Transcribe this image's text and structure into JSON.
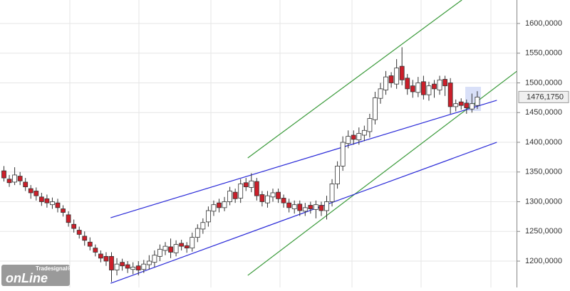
{
  "chart_data": {
    "type": "candlestick",
    "ylim": [
      1155.7,
      1639.5
    ],
    "yticks": [
      {
        "value": 1200,
        "label": "1200,0000"
      },
      {
        "value": 1250,
        "label": "1250,0000"
      },
      {
        "value": 1300,
        "label": "1300,0000"
      },
      {
        "value": 1350,
        "label": "1350,0000"
      },
      {
        "value": 1400,
        "label": "1400,0000"
      },
      {
        "value": 1450,
        "label": "1450,0000"
      },
      {
        "value": 1500,
        "label": "1500,0000"
      },
      {
        "value": 1550,
        "label": "1550,0000"
      },
      {
        "value": 1600,
        "label": "1600,0000"
      }
    ],
    "grid": true,
    "up_color": "#ffffff",
    "down_color": "#cc1f2a",
    "open": [
      1352,
      1338,
      1333,
      1343,
      1333,
      1322,
      1318,
      1308,
      1305,
      1295,
      1298,
      1288,
      1278,
      1262,
      1252,
      1242,
      1232,
      1222,
      1212,
      1208,
      1208,
      1185,
      1198,
      1194,
      1186,
      1192,
      1186,
      1194,
      1198,
      1208,
      1218,
      1224,
      1214,
      1230,
      1226,
      1222,
      1240,
      1254,
      1266,
      1284,
      1298,
      1290,
      1300,
      1316,
      1306,
      1332,
      1324,
      1334,
      1312,
      1298,
      1308,
      1316,
      1306,
      1298,
      1288,
      1296,
      1284,
      1294,
      1287,
      1294,
      1285,
      1300,
      1330,
      1360,
      1398,
      1412,
      1404,
      1412,
      1418,
      1438,
      1474,
      1488,
      1512,
      1498,
      1528,
      1508,
      1495,
      1484,
      1502,
      1480,
      1498,
      1488,
      1506,
      1500,
      1460,
      1468,
      1466,
      1456,
      1462
    ],
    "high": [
      1360,
      1345,
      1358,
      1350,
      1340,
      1328,
      1324,
      1315,
      1312,
      1307,
      1305,
      1294,
      1284,
      1270,
      1258,
      1250,
      1240,
      1228,
      1218,
      1215,
      1215,
      1205,
      1204,
      1200,
      1198,
      1200,
      1202,
      1210,
      1218,
      1228,
      1232,
      1238,
      1235,
      1236,
      1232,
      1248,
      1262,
      1272,
      1292,
      1302,
      1305,
      1308,
      1325,
      1322,
      1338,
      1340,
      1348,
      1340,
      1318,
      1318,
      1322,
      1322,
      1312,
      1305,
      1302,
      1302,
      1298,
      1300,
      1302,
      1300,
      1310,
      1338,
      1368,
      1410,
      1420,
      1420,
      1425,
      1428,
      1448,
      1485,
      1500,
      1520,
      1518,
      1540,
      1560,
      1515,
      1505,
      1510,
      1512,
      1502,
      1505,
      1512,
      1512,
      1508,
      1472,
      1474,
      1472,
      1482,
      1486
    ],
    "low": [
      1334,
      1325,
      1328,
      1328,
      1318,
      1305,
      1302,
      1293,
      1290,
      1288,
      1282,
      1275,
      1258,
      1248,
      1238,
      1226,
      1218,
      1208,
      1198,
      1192,
      1165,
      1176,
      1184,
      1180,
      1178,
      1176,
      1180,
      1186,
      1190,
      1200,
      1210,
      1205,
      1208,
      1218,
      1214,
      1216,
      1232,
      1246,
      1258,
      1276,
      1282,
      1284,
      1294,
      1298,
      1298,
      1318,
      1316,
      1302,
      1292,
      1290,
      1300,
      1298,
      1290,
      1282,
      1280,
      1276,
      1276,
      1280,
      1272,
      1276,
      1270,
      1292,
      1322,
      1352,
      1390,
      1396,
      1396,
      1402,
      1408,
      1430,
      1465,
      1480,
      1492,
      1490,
      1496,
      1480,
      1475,
      1476,
      1472,
      1470,
      1475,
      1480,
      1478,
      1448,
      1452,
      1455,
      1448,
      1450,
      1456
    ],
    "close": [
      1340,
      1332,
      1345,
      1335,
      1325,
      1315,
      1310,
      1300,
      1298,
      1300,
      1290,
      1282,
      1265,
      1255,
      1245,
      1235,
      1225,
      1215,
      1205,
      1200,
      1185,
      1195,
      1192,
      1188,
      1190,
      1185,
      1195,
      1200,
      1210,
      1220,
      1225,
      1215,
      1228,
      1225,
      1222,
      1240,
      1255,
      1265,
      1285,
      1295,
      1290,
      1300,
      1318,
      1305,
      1330,
      1325,
      1335,
      1310,
      1300,
      1310,
      1315,
      1305,
      1298,
      1290,
      1295,
      1285,
      1290,
      1288,
      1295,
      1285,
      1300,
      1330,
      1360,
      1400,
      1410,
      1405,
      1415,
      1420,
      1440,
      1475,
      1490,
      1510,
      1500,
      1525,
      1505,
      1490,
      1485,
      1500,
      1480,
      1495,
      1490,
      1505,
      1495,
      1460,
      1465,
      1462,
      1458,
      1465,
      1476.175
    ],
    "last_price": {
      "value": 1476.175,
      "label": "1476,1750"
    },
    "trendlines": [
      {
        "color": "#3a9a3a",
        "x": [
          45.4,
          85.2
        ],
        "y": [
          1373.7,
          1639.5
        ]
      },
      {
        "color": "#3a9a3a",
        "x": [
          45.4,
          95.4
        ],
        "y": [
          1176,
          1519.5
        ]
      },
      {
        "color": "#2a2ad8",
        "x": [
          19.9,
          91.7
        ],
        "y": [
          1273,
          1470.7
        ]
      },
      {
        "color": "#2a2ad8",
        "x": [
          19.9,
          91.7
        ],
        "y": [
          1162.6,
          1400
        ]
      }
    ],
    "logo": {
      "brand": "Tradesignal®",
      "name": "onLine"
    }
  }
}
